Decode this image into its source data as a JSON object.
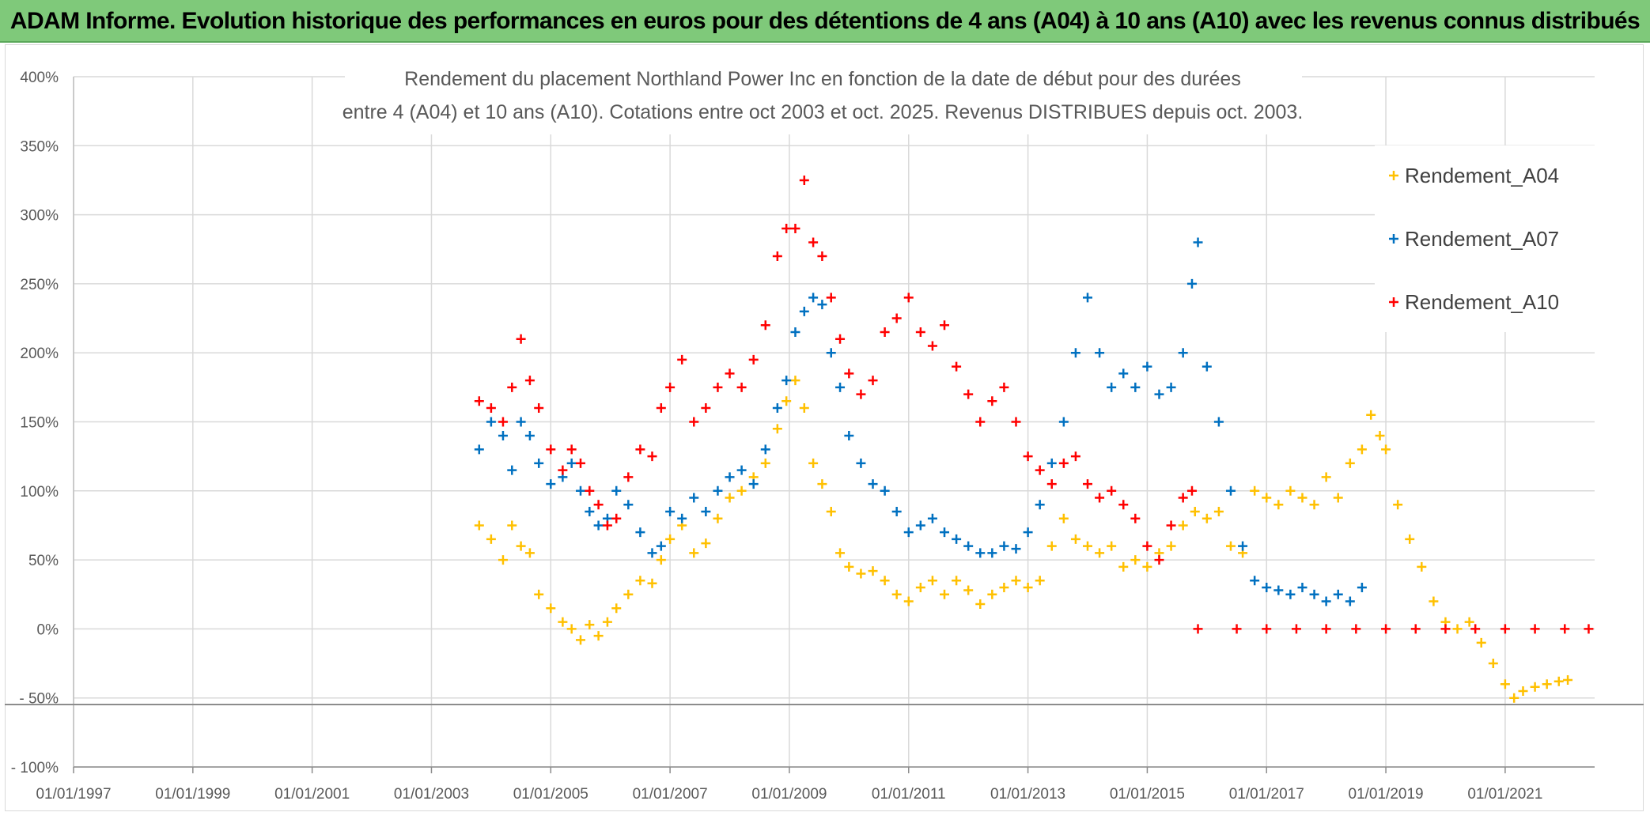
{
  "banner": {
    "title": "ADAM Informe. Evolution historique des performances en euros pour des détentions de 4 ans (A04) à 10 ans (A10) avec les revenus connus distribués"
  },
  "chart_data": {
    "type": "scatter",
    "title_line1": "Rendement du placement Northland Power Inc en fonction de la date de début pour des durées",
    "title_line2": "entre 4 (A04) et 10 ans (A10). Cotations entre oct 2003 et oct. 2025. Revenus DISTRIBUES depuis oct. 2003.",
    "xlim": [
      1997.0,
      2022.5
    ],
    "ylim": [
      -100,
      400
    ],
    "x_ticks": [
      1997,
      1999,
      2001,
      2003,
      2005,
      2007,
      2009,
      2011,
      2013,
      2015,
      2017,
      2019,
      2021
    ],
    "x_tick_labels": [
      "01/01/1997",
      "01/01/1999",
      "01/01/2001",
      "01/01/2003",
      "01/01/2005",
      "01/01/2007",
      "01/01/2009",
      "01/01/2011",
      "01/01/2013",
      "01/01/2015",
      "01/01/2017",
      "01/01/2019",
      "01/01/2021"
    ],
    "y_ticks": [
      400,
      350,
      300,
      250,
      200,
      150,
      100,
      50,
      0,
      -50,
      -100
    ],
    "y_tick_labels": [
      "400%",
      "350%",
      "300%",
      "250%",
      "200%",
      "150%",
      "100%",
      "50%",
      "0%",
      "- 50%",
      "- 100%"
    ],
    "series": [
      {
        "name": "Rendement_A04",
        "color": "#ffc000",
        "points": [
          [
            2003.8,
            75
          ],
          [
            2004.0,
            65
          ],
          [
            2004.2,
            50
          ],
          [
            2004.35,
            75
          ],
          [
            2004.5,
            60
          ],
          [
            2004.65,
            55
          ],
          [
            2004.8,
            25
          ],
          [
            2005.0,
            15
          ],
          [
            2005.2,
            5
          ],
          [
            2005.35,
            0
          ],
          [
            2005.5,
            -8
          ],
          [
            2005.65,
            3
          ],
          [
            2005.8,
            -5
          ],
          [
            2005.95,
            5
          ],
          [
            2006.1,
            15
          ],
          [
            2006.3,
            25
          ],
          [
            2006.5,
            35
          ],
          [
            2006.7,
            33
          ],
          [
            2006.85,
            50
          ],
          [
            2007.0,
            65
          ],
          [
            2007.2,
            75
          ],
          [
            2007.4,
            55
          ],
          [
            2007.6,
            62
          ],
          [
            2007.8,
            80
          ],
          [
            2008.0,
            95
          ],
          [
            2008.2,
            100
          ],
          [
            2008.4,
            110
          ],
          [
            2008.6,
            120
          ],
          [
            2008.8,
            145
          ],
          [
            2008.95,
            165
          ],
          [
            2009.1,
            180
          ],
          [
            2009.25,
            160
          ],
          [
            2009.4,
            120
          ],
          [
            2009.55,
            105
          ],
          [
            2009.7,
            85
          ],
          [
            2009.85,
            55
          ],
          [
            2010.0,
            45
          ],
          [
            2010.2,
            40
          ],
          [
            2010.4,
            42
          ],
          [
            2010.6,
            35
          ],
          [
            2010.8,
            25
          ],
          [
            2011.0,
            20
          ],
          [
            2011.2,
            30
          ],
          [
            2011.4,
            35
          ],
          [
            2011.6,
            25
          ],
          [
            2011.8,
            35
          ],
          [
            2012.0,
            28
          ],
          [
            2012.2,
            18
          ],
          [
            2012.4,
            25
          ],
          [
            2012.6,
            30
          ],
          [
            2012.8,
            35
          ],
          [
            2013.0,
            30
          ],
          [
            2013.2,
            35
          ],
          [
            2013.4,
            60
          ],
          [
            2013.6,
            80
          ],
          [
            2013.8,
            65
          ],
          [
            2014.0,
            60
          ],
          [
            2014.2,
            55
          ],
          [
            2014.4,
            60
          ],
          [
            2014.6,
            45
          ],
          [
            2014.8,
            50
          ],
          [
            2015.0,
            45
          ],
          [
            2015.2,
            55
          ],
          [
            2015.4,
            60
          ],
          [
            2015.6,
            75
          ],
          [
            2015.8,
            85
          ],
          [
            2016.0,
            80
          ],
          [
            2016.2,
            85
          ],
          [
            2016.4,
            60
          ],
          [
            2016.6,
            55
          ],
          [
            2016.8,
            100
          ],
          [
            2017.0,
            95
          ],
          [
            2017.2,
            90
          ],
          [
            2017.4,
            100
          ],
          [
            2017.6,
            95
          ],
          [
            2017.8,
            90
          ],
          [
            2018.0,
            110
          ],
          [
            2018.2,
            95
          ],
          [
            2018.4,
            120
          ],
          [
            2018.6,
            130
          ],
          [
            2018.75,
            155
          ],
          [
            2018.9,
            140
          ],
          [
            2019.0,
            130
          ],
          [
            2019.2,
            90
          ],
          [
            2019.4,
            65
          ],
          [
            2019.6,
            45
          ],
          [
            2019.8,
            20
          ],
          [
            2020.0,
            5
          ],
          [
            2020.2,
            0
          ],
          [
            2020.4,
            5
          ],
          [
            2020.6,
            -10
          ],
          [
            2020.8,
            -25
          ],
          [
            2021.0,
            -40
          ],
          [
            2021.15,
            -50
          ],
          [
            2021.3,
            -45
          ],
          [
            2021.5,
            -42
          ],
          [
            2021.7,
            -40
          ],
          [
            2021.9,
            -38
          ],
          [
            2022.05,
            -37
          ]
        ]
      },
      {
        "name": "Rendement_A07",
        "color": "#0070c0",
        "points": [
          [
            2003.8,
            130
          ],
          [
            2004.0,
            150
          ],
          [
            2004.2,
            140
          ],
          [
            2004.35,
            115
          ],
          [
            2004.5,
            150
          ],
          [
            2004.65,
            140
          ],
          [
            2004.8,
            120
          ],
          [
            2005.0,
            105
          ],
          [
            2005.2,
            110
          ],
          [
            2005.35,
            120
          ],
          [
            2005.5,
            100
          ],
          [
            2005.65,
            85
          ],
          [
            2005.8,
            75
          ],
          [
            2005.95,
            80
          ],
          [
            2006.1,
            100
          ],
          [
            2006.3,
            90
          ],
          [
            2006.5,
            70
          ],
          [
            2006.7,
            55
          ],
          [
            2006.85,
            60
          ],
          [
            2007.0,
            85
          ],
          [
            2007.2,
            80
          ],
          [
            2007.4,
            95
          ],
          [
            2007.6,
            85
          ],
          [
            2007.8,
            100
          ],
          [
            2008.0,
            110
          ],
          [
            2008.2,
            115
          ],
          [
            2008.4,
            105
          ],
          [
            2008.6,
            130
          ],
          [
            2008.8,
            160
          ],
          [
            2008.95,
            180
          ],
          [
            2009.1,
            215
          ],
          [
            2009.25,
            230
          ],
          [
            2009.4,
            240
          ],
          [
            2009.55,
            235
          ],
          [
            2009.7,
            200
          ],
          [
            2009.85,
            175
          ],
          [
            2010.0,
            140
          ],
          [
            2010.2,
            120
          ],
          [
            2010.4,
            105
          ],
          [
            2010.6,
            100
          ],
          [
            2010.8,
            85
          ],
          [
            2011.0,
            70
          ],
          [
            2011.2,
            75
          ],
          [
            2011.4,
            80
          ],
          [
            2011.6,
            70
          ],
          [
            2011.8,
            65
          ],
          [
            2012.0,
            60
          ],
          [
            2012.2,
            55
          ],
          [
            2012.4,
            55
          ],
          [
            2012.6,
            60
          ],
          [
            2012.8,
            58
          ],
          [
            2013.0,
            70
          ],
          [
            2013.2,
            90
          ],
          [
            2013.4,
            120
          ],
          [
            2013.6,
            150
          ],
          [
            2013.8,
            200
          ],
          [
            2014.0,
            240
          ],
          [
            2014.2,
            200
          ],
          [
            2014.4,
            175
          ],
          [
            2014.6,
            185
          ],
          [
            2014.8,
            175
          ],
          [
            2015.0,
            190
          ],
          [
            2015.2,
            170
          ],
          [
            2015.4,
            175
          ],
          [
            2015.6,
            200
          ],
          [
            2015.75,
            250
          ],
          [
            2015.85,
            280
          ],
          [
            2016.0,
            190
          ],
          [
            2016.2,
            150
          ],
          [
            2016.4,
            100
          ],
          [
            2016.6,
            60
          ],
          [
            2016.8,
            35
          ],
          [
            2017.0,
            30
          ],
          [
            2017.2,
            28
          ],
          [
            2017.4,
            25
          ],
          [
            2017.6,
            30
          ],
          [
            2017.8,
            25
          ],
          [
            2018.0,
            20
          ],
          [
            2018.2,
            25
          ],
          [
            2018.4,
            20
          ],
          [
            2018.6,
            30
          ]
        ]
      },
      {
        "name": "Rendement_A10",
        "color": "#ff0000",
        "points": [
          [
            2003.8,
            165
          ],
          [
            2004.0,
            160
          ],
          [
            2004.2,
            150
          ],
          [
            2004.35,
            175
          ],
          [
            2004.5,
            210
          ],
          [
            2004.65,
            180
          ],
          [
            2004.8,
            160
          ],
          [
            2005.0,
            130
          ],
          [
            2005.2,
            115
          ],
          [
            2005.35,
            130
          ],
          [
            2005.5,
            120
          ],
          [
            2005.65,
            100
          ],
          [
            2005.8,
            90
          ],
          [
            2005.95,
            75
          ],
          [
            2006.1,
            80
          ],
          [
            2006.3,
            110
          ],
          [
            2006.5,
            130
          ],
          [
            2006.7,
            125
          ],
          [
            2006.85,
            160
          ],
          [
            2007.0,
            175
          ],
          [
            2007.2,
            195
          ],
          [
            2007.4,
            150
          ],
          [
            2007.6,
            160
          ],
          [
            2007.8,
            175
          ],
          [
            2008.0,
            185
          ],
          [
            2008.2,
            175
          ],
          [
            2008.4,
            195
          ],
          [
            2008.6,
            220
          ],
          [
            2008.8,
            270
          ],
          [
            2008.95,
            290
          ],
          [
            2009.1,
            290
          ],
          [
            2009.25,
            325
          ],
          [
            2009.4,
            280
          ],
          [
            2009.55,
            270
          ],
          [
            2009.7,
            240
          ],
          [
            2009.85,
            210
          ],
          [
            2010.0,
            185
          ],
          [
            2010.2,
            170
          ],
          [
            2010.4,
            180
          ],
          [
            2010.6,
            215
          ],
          [
            2010.8,
            225
          ],
          [
            2011.0,
            240
          ],
          [
            2011.2,
            215
          ],
          [
            2011.4,
            205
          ],
          [
            2011.6,
            220
          ],
          [
            2011.8,
            190
          ],
          [
            2012.0,
            170
          ],
          [
            2012.2,
            150
          ],
          [
            2012.4,
            165
          ],
          [
            2012.6,
            175
          ],
          [
            2012.8,
            150
          ],
          [
            2013.0,
            125
          ],
          [
            2013.2,
            115
          ],
          [
            2013.4,
            105
          ],
          [
            2013.6,
            120
          ],
          [
            2013.8,
            125
          ],
          [
            2014.0,
            105
          ],
          [
            2014.2,
            95
          ],
          [
            2014.4,
            100
          ],
          [
            2014.6,
            90
          ],
          [
            2014.8,
            80
          ],
          [
            2015.0,
            60
          ],
          [
            2015.2,
            50
          ],
          [
            2015.4,
            75
          ],
          [
            2015.6,
            95
          ],
          [
            2015.75,
            100
          ],
          [
            2015.85,
            0
          ],
          [
            2016.5,
            0
          ],
          [
            2017.0,
            0
          ],
          [
            2017.5,
            0
          ],
          [
            2018.0,
            0
          ],
          [
            2018.5,
            0
          ],
          [
            2019.0,
            0
          ],
          [
            2019.5,
            0
          ],
          [
            2020.0,
            0
          ],
          [
            2020.5,
            0
          ],
          [
            2021.0,
            0
          ],
          [
            2021.5,
            0
          ],
          [
            2022.0,
            0
          ],
          [
            2022.4,
            0
          ]
        ]
      }
    ],
    "legend_position": "right"
  }
}
